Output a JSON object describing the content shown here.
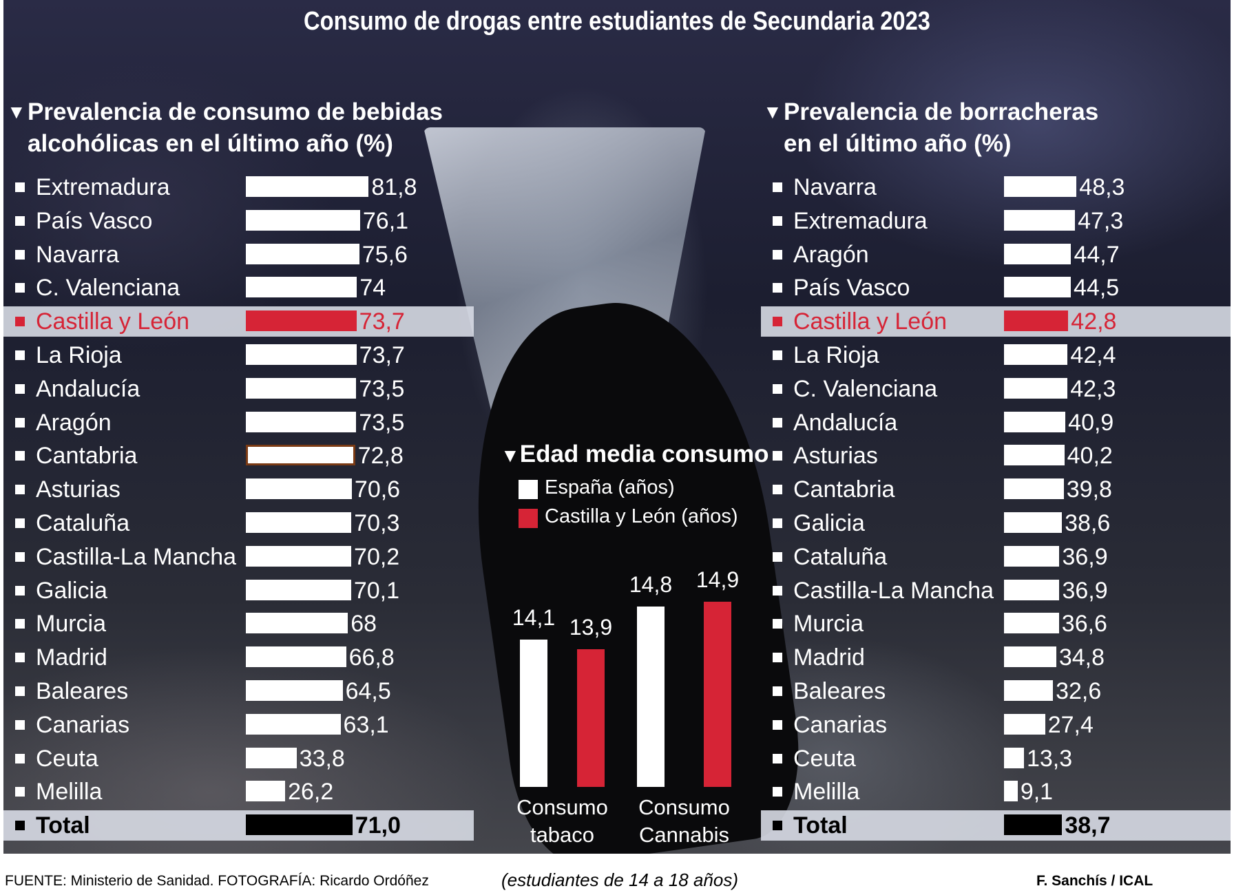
{
  "title": "Consumo de drogas entre estudiantes de Secundaria 2023",
  "chart_data": [
    {
      "type": "bar",
      "orientation": "horizontal",
      "title_line1": "Prevalencia de consumo de bebidas",
      "title_line2": "alcohólicas en el último año (%)",
      "highlight": "Castilla y León",
      "categories": [
        "Extremadura",
        "País Vasco",
        "Navarra",
        "C. Valenciana",
        "Castilla y León",
        "La Rioja",
        "Andalucía",
        "Aragón",
        "Cantabria",
        "Asturias",
        "Cataluña",
        "Castilla-La Mancha",
        "Galicia",
        "Murcia",
        "Madrid",
        "Baleares",
        "Canarias",
        "Ceuta",
        "Melilla"
      ],
      "values": [
        81.8,
        76.1,
        75.6,
        74,
        73.7,
        73.7,
        73.5,
        73.5,
        72.8,
        70.6,
        70.3,
        70.2,
        70.1,
        68,
        66.8,
        64.5,
        63.1,
        33.8,
        26.2
      ],
      "labels": [
        "81,8",
        "76,1",
        "75,6",
        "74",
        "73,7",
        "73,7",
        "73,5",
        "73,5",
        "72,8",
        "70,6",
        "70,3",
        "70,2",
        "70,1",
        "68",
        "66,8",
        "64,5",
        "63,1",
        "33,8",
        "26,2"
      ],
      "total": {
        "label": "Total",
        "value": 71.0,
        "text": "71,0"
      }
    },
    {
      "type": "bar",
      "orientation": "horizontal",
      "title_line1": "Prevalencia de borracheras",
      "title_line2": "en el último año (%)",
      "highlight": "Castilla y León",
      "categories": [
        "Navarra",
        "Extremadura",
        "Aragón",
        "País Vasco",
        "Castilla y León",
        "La Rioja",
        "C. Valenciana",
        "Andalucía",
        "Asturias",
        "Cantabria",
        "Galicia",
        "Cataluña",
        "Castilla-La Mancha",
        "Murcia",
        "Madrid",
        "Baleares",
        "Canarias",
        "Ceuta",
        "Melilla"
      ],
      "values": [
        48.3,
        47.3,
        44.7,
        44.5,
        42.8,
        42.4,
        42.3,
        40.9,
        40.2,
        39.8,
        38.6,
        36.9,
        36.9,
        36.6,
        34.8,
        32.6,
        27.4,
        13.3,
        9.1
      ],
      "labels": [
        "48,3",
        "47,3",
        "44,7",
        "44,5",
        "42,8",
        "42,4",
        "42,3",
        "40,9",
        "40,2",
        "39,8",
        "38,6",
        "36,9",
        "36,9",
        "36,6",
        "34,8",
        "32,6",
        "27,4",
        "13,3",
        "9,1"
      ],
      "total": {
        "label": "Total",
        "value": 38.7,
        "text": "38,7"
      }
    },
    {
      "type": "bar",
      "orientation": "vertical",
      "title": "Edad media consumo",
      "categories": [
        "Consumo tabaco",
        "Consumo Cannabis"
      ],
      "category_lines": [
        [
          "Consumo",
          "tabaco"
        ],
        [
          "Consumo",
          "Cannabis"
        ]
      ],
      "series": [
        {
          "name": "España (años)",
          "values": [
            14.1,
            14.8
          ],
          "labels": [
            "14,1",
            "14,8"
          ],
          "color": "#ffffff"
        },
        {
          "name": "Castilla y León (años)",
          "values": [
            13.9,
            14.9
          ],
          "labels": [
            "13,9",
            "14,9"
          ],
          "color": "#d62436"
        }
      ]
    }
  ],
  "source": "FUENTE: Ministerio de Sanidad. FOTOGRAFÍA: Ricardo Ordóñez",
  "note": "(estudiantes de 14 a 18 años)",
  "credit": "F. Sanchís / ICAL",
  "colors": {
    "highlight": "#d62436",
    "bar": "#ffffff",
    "total": "#000000",
    "highlight_band": "#d7dae4"
  }
}
